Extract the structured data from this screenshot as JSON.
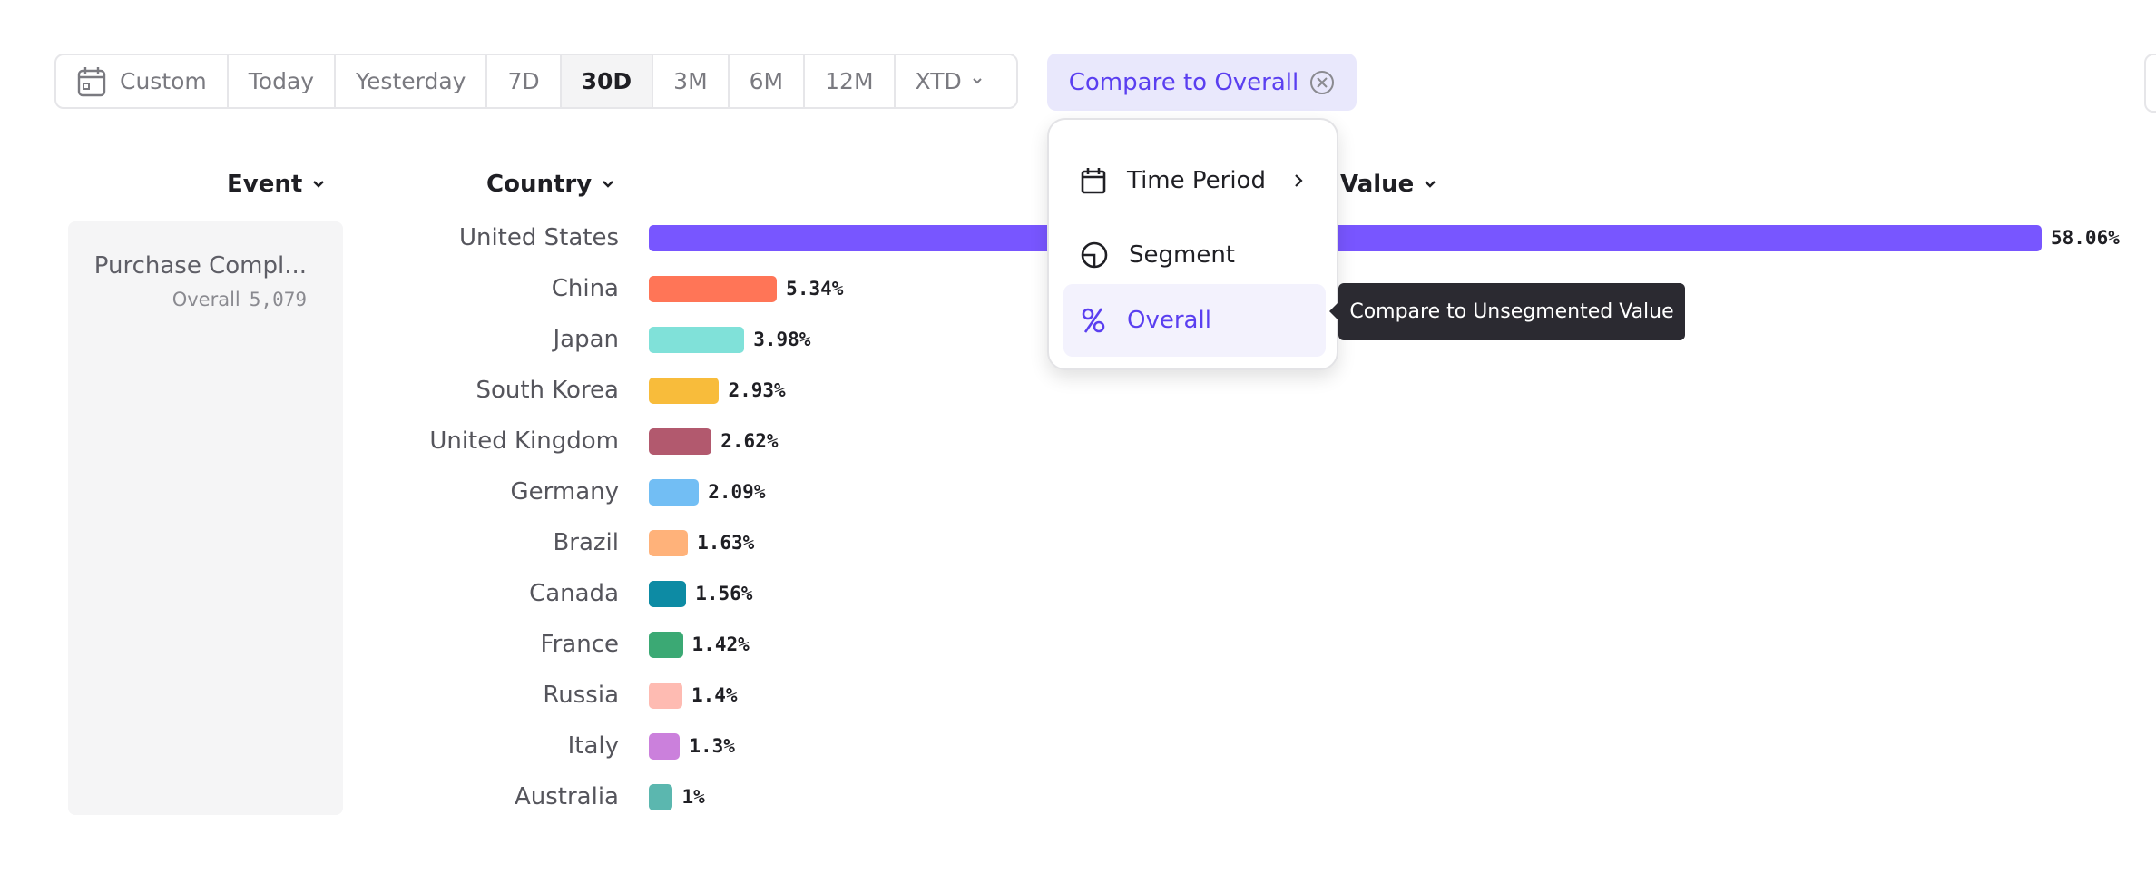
{
  "toolbar": {
    "buttons": [
      {
        "label": "Custom",
        "icon": "calendar-icon"
      },
      {
        "label": "Today"
      },
      {
        "label": "Yesterday"
      },
      {
        "label": "7D"
      },
      {
        "label": "30D",
        "active": true
      },
      {
        "label": "3M"
      },
      {
        "label": "6M"
      },
      {
        "label": "12M"
      },
      {
        "label": "XTD",
        "icon": "chevron-down-icon"
      }
    ],
    "compare_label": "Compare to Overall"
  },
  "headers": {
    "event": "Event",
    "country": "Country",
    "value": "Value"
  },
  "event_panel": {
    "name": "Purchase Compl...",
    "sub_label": "Overall",
    "sub_value": "5,079"
  },
  "menu": {
    "items": [
      {
        "label": "Time Period",
        "icon": "calendar-icon"
      },
      {
        "label": "Segment",
        "icon": "segment-pie-icon"
      },
      {
        "label": "Overall",
        "icon": "percent-icon",
        "selected": true
      }
    ],
    "tooltip": "Compare to Unsegmented Value"
  },
  "chart_data": {
    "type": "bar",
    "orientation": "horizontal",
    "categories": [
      "United States",
      "China",
      "Japan",
      "South Korea",
      "United Kingdom",
      "Germany",
      "Brazil",
      "Canada",
      "France",
      "Russia",
      "Italy",
      "Australia"
    ],
    "values": [
      58.06,
      5.34,
      3.98,
      2.93,
      2.62,
      2.09,
      1.63,
      1.56,
      1.42,
      1.4,
      1.3,
      1
    ],
    "labels": [
      "58.06%",
      "5.34%",
      "3.98%",
      "2.93%",
      "2.62%",
      "2.09%",
      "1.63%",
      "1.56%",
      "1.42%",
      "1.4%",
      "1.3%",
      "1%"
    ],
    "colors": [
      "#7856ff",
      "#ff7557",
      "#80e1d9",
      "#f8bc3b",
      "#b2596e",
      "#72bef4",
      "#ffb27a",
      "#0d8ba4",
      "#3ba974",
      "#febbb2",
      "#cb80dc",
      "#5bb7af"
    ]
  }
}
